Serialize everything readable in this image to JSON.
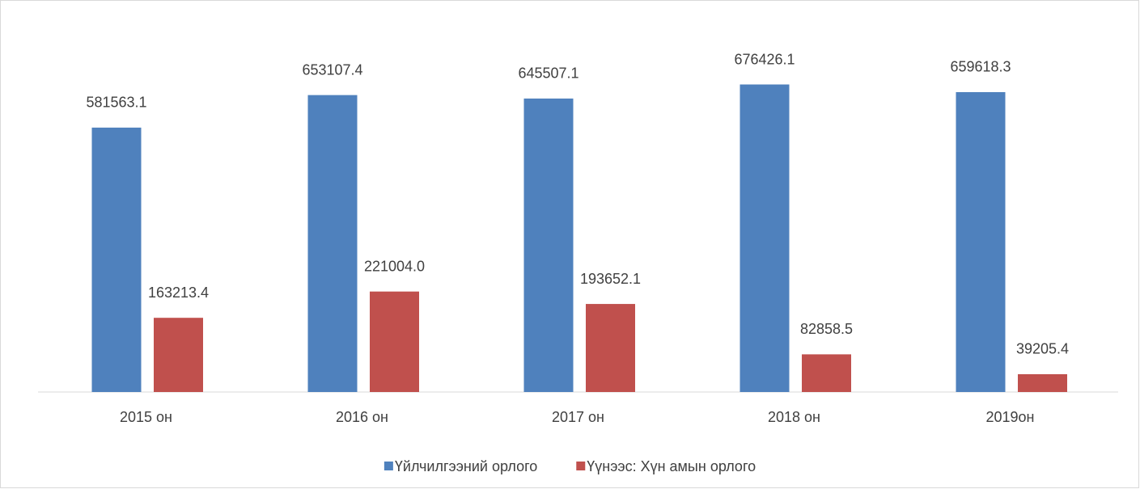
{
  "chart_data": {
    "type": "bar",
    "categories": [
      "2015 он",
      "2016 он",
      "2017 он",
      "2018 он",
      "2019он"
    ],
    "series": [
      {
        "name": "Үйлчилгээний орлого",
        "color": "#4f81bd",
        "values": [
          581563.1,
          653107.4,
          645507.1,
          676426.1,
          659618.3
        ]
      },
      {
        "name": "Үүнээс: Хүн амын орлого",
        "color": "#c0504d",
        "values": [
          163213.4,
          221004.0,
          193652.1,
          82858.5,
          39205.4
        ],
        "value_labels": [
          "163213.4",
          "221004.0",
          "193652.1",
          "82858.5",
          "39205.4"
        ]
      }
    ],
    "ylim": [
      0,
      800000
    ],
    "legend": "bottom"
  }
}
